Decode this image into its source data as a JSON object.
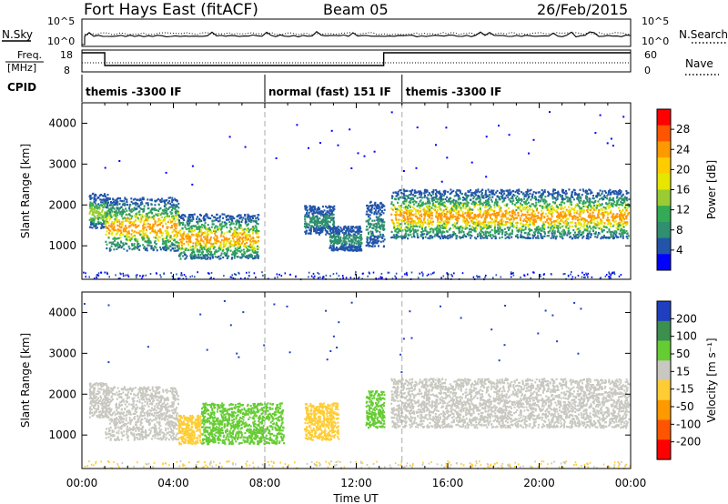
{
  "header": {
    "station": "Fort Hays East (fitACF)",
    "beam": "Beam 05",
    "date": "26/Feb/2015"
  },
  "top_panels": {
    "nsky_label": "N.Sky",
    "nsearch_label": "N.Search",
    "freq_label_1": "Freq.",
    "freq_label_2": "[MHz]",
    "nave_label": "Nave",
    "cpid_label": "CPID",
    "nsky_ticks": [
      "10^5",
      "10^0"
    ],
    "nsearch_ticks": [
      "10^5",
      "10^0"
    ],
    "freq_ticks": [
      "18",
      "8"
    ],
    "nave_ticks": [
      "60",
      "0"
    ]
  },
  "cpid": {
    "segments": [
      {
        "label": "themis -3300 IF",
        "start": 0.0,
        "end": 8.0
      },
      {
        "label": "normal (fast) 151 IF",
        "start": 8.0,
        "end": 14.0
      },
      {
        "label": "themis -3300 IF",
        "start": 14.0,
        "end": 24.0
      }
    ]
  },
  "power_colorbar": {
    "label": "Power [dB]",
    "ticks": [
      "28",
      "24",
      "20",
      "16",
      "12",
      "8",
      "4"
    ],
    "colors": [
      "#ff0000",
      "#ff5500",
      "#ff9900",
      "#ffcc00",
      "#e6e600",
      "#99cc33",
      "#33aa55",
      "#2f8f6f",
      "#2255aa",
      "#0000ff"
    ]
  },
  "velocity_colorbar": {
    "label": "Velocity [m s⁻¹]",
    "ticks": [
      "200",
      "100",
      "50",
      "15",
      "-15",
      "-50",
      "-100",
      "-200"
    ],
    "colors": [
      "#1f3fbf",
      "#3b8f4f",
      "#66cc33",
      "#c8c8c0",
      "#ffcc33",
      "#ff9900",
      "#ff5500",
      "#ff0000"
    ]
  },
  "chart_data": [
    {
      "type": "heatmap",
      "title": "Power",
      "xlabel": "Time UT",
      "ylabel": "Slant Range [km]",
      "x_ticks": [
        "00:00",
        "04:00",
        "08:00",
        "12:00",
        "16:00",
        "20:00",
        "00:00"
      ],
      "y_ticks": [
        1000,
        2000,
        3000,
        4000
      ],
      "xlim": [
        0,
        24
      ],
      "ylim": [
        180,
        4500
      ],
      "regions": [
        {
          "t0": 0.3,
          "t1": 1.1,
          "r0": 1450,
          "r1": 2300,
          "level": "medium"
        },
        {
          "t0": 1.0,
          "t1": 4.2,
          "r0": 900,
          "r1": 2200,
          "level": "high"
        },
        {
          "t0": 4.2,
          "t1": 7.7,
          "r0": 700,
          "r1": 1800,
          "level": "high"
        },
        {
          "t0": 9.7,
          "t1": 11.0,
          "r0": 1300,
          "r1": 2000,
          "level": "low"
        },
        {
          "t0": 10.8,
          "t1": 12.2,
          "r0": 900,
          "r1": 1500,
          "level": "low"
        },
        {
          "t0": 12.4,
          "t1": 13.2,
          "r0": 1000,
          "r1": 2100,
          "level": "low"
        },
        {
          "t0": 13.5,
          "t1": 23.9,
          "r0": 1200,
          "r1": 2400,
          "level": "high"
        }
      ]
    },
    {
      "type": "heatmap",
      "title": "Velocity",
      "xlabel": "Time UT",
      "ylabel": "Slant Range [km]",
      "x_ticks": [
        "00:00",
        "04:00",
        "08:00",
        "12:00",
        "16:00",
        "20:00",
        "00:00"
      ],
      "y_ticks": [
        1000,
        2000,
        3000,
        4000
      ],
      "xlim": [
        0,
        24
      ],
      "ylim": [
        180,
        4500
      ],
      "regions": [
        {
          "t0": 0.3,
          "t1": 1.1,
          "r0": 1450,
          "r1": 2300,
          "velocity": 0
        },
        {
          "t0": 1.0,
          "t1": 4.2,
          "r0": 900,
          "r1": 2200,
          "velocity": 0
        },
        {
          "t0": 4.2,
          "t1": 5.2,
          "r0": 800,
          "r1": 1500,
          "velocity": -40
        },
        {
          "t0": 5.2,
          "t1": 8.8,
          "r0": 800,
          "r1": 1800,
          "velocity": 40
        },
        {
          "t0": 9.7,
          "t1": 11.2,
          "r0": 900,
          "r1": 1800,
          "velocity": -40
        },
        {
          "t0": 12.4,
          "t1": 13.2,
          "r0": 1200,
          "r1": 2100,
          "velocity": 30
        },
        {
          "t0": 13.5,
          "t1": 23.9,
          "r0": 1200,
          "r1": 2400,
          "velocity": 0
        }
      ]
    }
  ]
}
